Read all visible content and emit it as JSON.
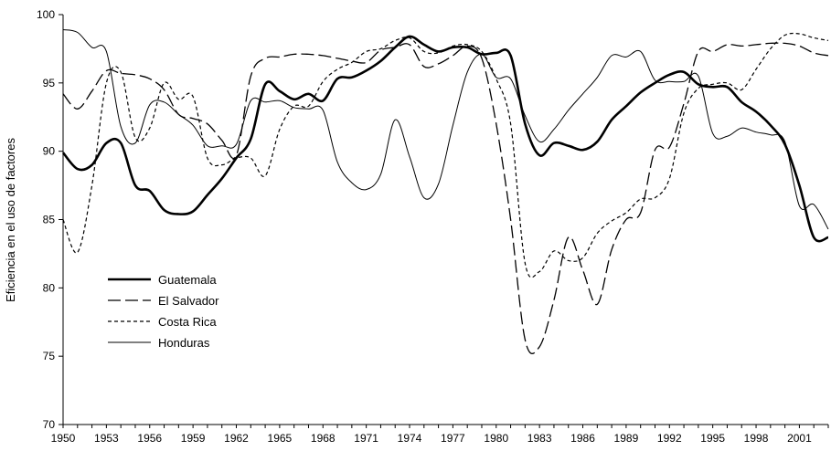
{
  "chart_data": {
    "type": "line",
    "title": "",
    "xlabel": "",
    "ylabel": "Eficiencia en el uso de factores",
    "xlim": [
      1950,
      2003
    ],
    "ylim": [
      70,
      100
    ],
    "yticks": [
      70,
      75,
      80,
      85,
      90,
      95,
      100
    ],
    "xticks": [
      "1950",
      "1953",
      "1956",
      "1959",
      "1962",
      "1965",
      "1968",
      "1971",
      "1974",
      "1977",
      "1980",
      "1983",
      "1986",
      "1989",
      "1992",
      "1995",
      "1998",
      "2001"
    ],
    "grid": false,
    "legend_position": "left",
    "series": [
      {
        "name": "Guatemala",
        "style": "solid-thick",
        "color": "#000000",
        "x": [
          1950,
          1951,
          1952,
          1953,
          1954,
          1955,
          1956,
          1957,
          1958,
          1959,
          1960,
          1961,
          1962,
          1963,
          1964,
          1965,
          1966,
          1967,
          1968,
          1969,
          1970,
          1971,
          1972,
          1973,
          1974,
          1975,
          1976,
          1977,
          1978,
          1979,
          1980,
          1981,
          1982,
          1983,
          1984,
          1985,
          1986,
          1987,
          1988,
          1989,
          1990,
          1991,
          1992,
          1993,
          1994,
          1995,
          1996,
          1997,
          1998,
          1999,
          2000,
          2001,
          2002,
          2003
        ],
        "y": [
          89.9,
          88.7,
          89.0,
          90.6,
          90.6,
          87.5,
          87.1,
          85.7,
          85.4,
          85.6,
          86.8,
          88.0,
          89.5,
          90.9,
          94.9,
          94.4,
          93.8,
          94.2,
          93.7,
          95.3,
          95.4,
          95.9,
          96.6,
          97.6,
          98.4,
          97.8,
          97.3,
          97.6,
          97.6,
          97.1,
          97.2,
          97.0,
          92.0,
          89.7,
          90.6,
          90.4,
          90.1,
          90.7,
          92.3,
          93.3,
          94.3,
          95.0,
          95.6,
          95.8,
          94.9,
          94.7,
          94.7,
          93.6,
          92.9,
          91.9,
          90.5,
          87.5,
          83.7,
          83.7
        ]
      },
      {
        "name": "El Salvador",
        "style": "long-dash",
        "color": "#000000",
        "x": [
          1950,
          1951,
          1952,
          1953,
          1954,
          1955,
          1956,
          1957,
          1958,
          1959,
          1960,
          1961,
          1962,
          1963,
          1964,
          1965,
          1966,
          1967,
          1968,
          1969,
          1970,
          1971,
          1972,
          1973,
          1974,
          1975,
          1976,
          1977,
          1978,
          1979,
          1980,
          1981,
          1982,
          1983,
          1984,
          1985,
          1986,
          1987,
          1988,
          1989,
          1990,
          1991,
          1992,
          1993,
          1994,
          1995,
          1996,
          1997,
          1998,
          1999,
          2000,
          2001,
          2002,
          2003
        ],
        "y": [
          94.2,
          93.1,
          94.4,
          95.9,
          95.7,
          95.6,
          95.3,
          94.5,
          92.7,
          92.4,
          92.0,
          90.8,
          89.7,
          95.5,
          96.8,
          96.9,
          97.1,
          97.1,
          97.0,
          96.8,
          96.6,
          96.5,
          97.4,
          97.6,
          97.8,
          96.2,
          96.4,
          97.0,
          97.7,
          96.8,
          92.0,
          85.0,
          76.2,
          75.7,
          79.1,
          83.7,
          81.3,
          78.8,
          82.8,
          85.0,
          85.5,
          90.1,
          90.3,
          93.5,
          97.3,
          97.3,
          97.8,
          97.7,
          97.8,
          97.9,
          97.9,
          97.7,
          97.2,
          97.0
        ]
      },
      {
        "name": "Costa Rica",
        "style": "short-dash",
        "color": "#000000",
        "x": [
          1950,
          1951,
          1952,
          1953,
          1954,
          1955,
          1956,
          1957,
          1958,
          1959,
          1960,
          1961,
          1962,
          1963,
          1964,
          1965,
          1966,
          1967,
          1968,
          1969,
          1970,
          1971,
          1972,
          1973,
          1974,
          1975,
          1976,
          1977,
          1978,
          1979,
          1980,
          1981,
          1982,
          1983,
          1984,
          1985,
          1986,
          1987,
          1988,
          1989,
          1990,
          1991,
          1992,
          1993,
          1994,
          1995,
          1996,
          1997,
          1998,
          1999,
          2000,
          2001,
          2002,
          2003
        ],
        "y": [
          85.0,
          82.6,
          87.5,
          95.0,
          95.8,
          91.0,
          91.7,
          95.0,
          93.8,
          94.0,
          89.5,
          89.0,
          89.5,
          89.5,
          88.2,
          91.6,
          93.3,
          93.3,
          95.1,
          96.0,
          96.5,
          97.3,
          97.5,
          98.1,
          98.3,
          97.3,
          97.2,
          97.7,
          97.8,
          97.3,
          95.3,
          92.0,
          81.8,
          81.2,
          82.7,
          82.0,
          82.2,
          84.0,
          84.9,
          85.5,
          86.5,
          86.6,
          88.0,
          92.8,
          94.6,
          94.9,
          95.0,
          94.5,
          96.0,
          97.5,
          98.5,
          98.6,
          98.3,
          98.1
        ]
      },
      {
        "name": "Honduras",
        "style": "solid-thin",
        "color": "#000000",
        "x": [
          1950,
          1951,
          1952,
          1953,
          1954,
          1955,
          1956,
          1957,
          1958,
          1959,
          1960,
          1961,
          1962,
          1963,
          1964,
          1965,
          1966,
          1967,
          1968,
          1969,
          1970,
          1971,
          1972,
          1973,
          1974,
          1975,
          1976,
          1977,
          1978,
          1979,
          1980,
          1981,
          1982,
          1983,
          1984,
          1985,
          1986,
          1987,
          1988,
          1989,
          1990,
          1991,
          1992,
          1993,
          1994,
          1995,
          1996,
          1997,
          1998,
          1999,
          2000,
          2001,
          2002,
          2003
        ],
        "y": [
          98.9,
          98.7,
          97.6,
          97.3,
          91.8,
          90.6,
          93.4,
          93.6,
          92.7,
          91.9,
          90.4,
          90.4,
          90.5,
          93.7,
          93.6,
          93.7,
          93.2,
          93.1,
          93.0,
          89.2,
          87.7,
          87.2,
          88.3,
          92.3,
          89.6,
          86.6,
          87.6,
          91.9,
          95.8,
          97.1,
          95.4,
          95.3,
          92.6,
          90.7,
          91.6,
          93.0,
          94.2,
          95.4,
          97.0,
          96.9,
          97.3,
          95.2,
          95.1,
          95.1,
          95.5,
          91.3,
          91.1,
          91.7,
          91.4,
          91.2,
          90.7,
          86.0,
          86.1,
          84.3
        ]
      }
    ]
  }
}
